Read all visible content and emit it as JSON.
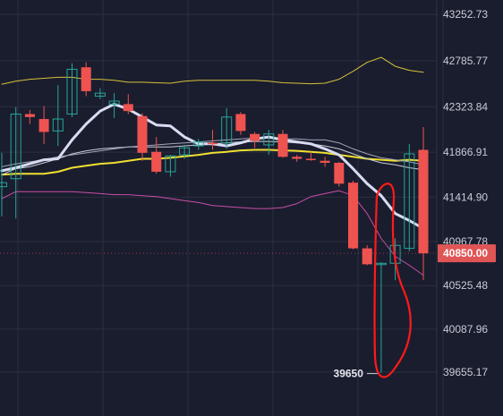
{
  "chart_data": {
    "type": "candlestick",
    "title": "",
    "xlabel": "",
    "ylabel": "",
    "ylim": [
      39500,
      43350
    ],
    "grid": true,
    "y_ticks": [
      "43252.73",
      "42785.77",
      "42323.84",
      "41866.91",
      "41414.90",
      "40967.78",
      "40525.48",
      "40087.96",
      "39655.17"
    ],
    "y_tick_values": [
      43252.73,
      42785.77,
      42323.84,
      41866.91,
      41414.9,
      40967.78,
      40525.48,
      40087.96,
      39655.17
    ],
    "current_price": {
      "label": "40850.00",
      "value": 40850.0
    },
    "low_marker": {
      "label": "39650",
      "value": 39650
    },
    "colors": {
      "up": "#26a69a",
      "down": "#ef5350",
      "background": "#1a1d2e",
      "grid": "#2a2e3f",
      "price_tag": "#e05555",
      "annotation": "#ff1a1a"
    },
    "candles": [
      {
        "o": 41520,
        "h": 41860,
        "l": 41220,
        "c": 41560
      },
      {
        "o": 41600,
        "h": 42320,
        "l": 41200,
        "c": 42250
      },
      {
        "o": 42250,
        "h": 42290,
        "l": 42150,
        "c": 42220
      },
      {
        "o": 42200,
        "h": 42330,
        "l": 41950,
        "c": 42070
      },
      {
        "o": 42080,
        "h": 42540,
        "l": 41930,
        "c": 42200
      },
      {
        "o": 42250,
        "h": 42760,
        "l": 42220,
        "c": 42700
      },
      {
        "o": 42720,
        "h": 42770,
        "l": 42430,
        "c": 42480
      },
      {
        "o": 42430,
        "h": 42510,
        "l": 42400,
        "c": 42460
      },
      {
        "o": 42350,
        "h": 42460,
        "l": 42210,
        "c": 42380
      },
      {
        "o": 42350,
        "h": 42450,
        "l": 42250,
        "c": 42280
      },
      {
        "o": 42230,
        "h": 42260,
        "l": 41780,
        "c": 41860
      },
      {
        "o": 41870,
        "h": 42020,
        "l": 41650,
        "c": 41670
      },
      {
        "o": 41670,
        "h": 41840,
        "l": 41620,
        "c": 41830
      },
      {
        "o": 41840,
        "h": 41940,
        "l": 41800,
        "c": 41910
      },
      {
        "o": 41930,
        "h": 42000,
        "l": 41890,
        "c": 41970
      },
      {
        "o": 41960,
        "h": 42090,
        "l": 41890,
        "c": 41950
      },
      {
        "o": 41960,
        "h": 42310,
        "l": 41900,
        "c": 42220
      },
      {
        "o": 42250,
        "h": 42270,
        "l": 42040,
        "c": 42080
      },
      {
        "o": 42050,
        "h": 42070,
        "l": 41910,
        "c": 41980
      },
      {
        "o": 41940,
        "h": 42090,
        "l": 41840,
        "c": 42050
      },
      {
        "o": 42050,
        "h": 42090,
        "l": 41810,
        "c": 41820
      },
      {
        "o": 41820,
        "h": 41840,
        "l": 41770,
        "c": 41800
      },
      {
        "o": 41800,
        "h": 41870,
        "l": 41780,
        "c": 41790
      },
      {
        "o": 41780,
        "h": 41820,
        "l": 41720,
        "c": 41760
      },
      {
        "o": 41760,
        "h": 41770,
        "l": 41520,
        "c": 41550
      },
      {
        "o": 41560,
        "h": 41580,
        "l": 40890,
        "c": 40900
      },
      {
        "o": 40900,
        "h": 40930,
        "l": 40730,
        "c": 40740
      },
      {
        "o": 40740,
        "h": 40760,
        "l": 39650,
        "c": 40750
      },
      {
        "o": 40750,
        "h": 41000,
        "l": 40580,
        "c": 40930
      },
      {
        "o": 40900,
        "h": 41950,
        "l": 40870,
        "c": 41850
      },
      {
        "o": 41890,
        "h": 42120,
        "l": 40580,
        "c": 40850
      }
    ],
    "series": [
      {
        "values": [
          42550,
          42580,
          42600,
          42610,
          42620,
          42620,
          42600,
          42600,
          42590,
          42570,
          42570,
          42565,
          42560,
          42580,
          42590,
          42590,
          42590,
          42590,
          42590,
          42580,
          42565,
          42560,
          42555,
          42560,
          42600,
          42680,
          42770,
          42820,
          42730,
          42690,
          42670
        ],
        "color": "#d6c23a",
        "width": 1
      },
      {
        "values": [
          41640,
          41650,
          41650,
          41650,
          41670,
          41710,
          41730,
          41750,
          41760,
          41780,
          41800,
          41800,
          41810,
          41825,
          41840,
          41860,
          41870,
          41885,
          41890,
          41890,
          41885,
          41880,
          41870,
          41860,
          41840,
          41820,
          41800,
          41790,
          41780,
          41790,
          41780
        ],
        "color": "#f0e030",
        "width": 2
      },
      {
        "values": [
          41640,
          41700,
          41720,
          41760,
          41800,
          41850,
          41880,
          41900,
          41910,
          41920,
          41920,
          41920,
          41920,
          41930,
          41940,
          41950,
          41960,
          41970,
          41975,
          41975,
          41970,
          41960,
          41950,
          41930,
          41900,
          41850,
          41800,
          41760,
          41740,
          41710,
          41690
        ],
        "color": "#c9cdd8",
        "width": 1
      },
      {
        "values": [
          41720,
          41750,
          41770,
          41790,
          41820,
          41840,
          41860,
          41880,
          41900,
          41920,
          41930,
          41940,
          41950,
          41960,
          41970,
          41980,
          41990,
          42000,
          42010,
          42010,
          42000,
          42000,
          41990,
          41990,
          41960,
          41900,
          41850,
          41810,
          41790,
          41770,
          41740
        ],
        "color": "#a0a6bc",
        "width": 1
      },
      {
        "values": [
          41680,
          41710,
          41750,
          41790,
          41800,
          41990,
          42150,
          42280,
          42350,
          42300,
          42220,
          42140,
          42130,
          42020,
          41950,
          41950,
          41930,
          41960,
          42000,
          42020,
          41990,
          41970,
          41950,
          41900,
          41840,
          41700,
          41550,
          41430,
          41250,
          41180,
          41100
        ],
        "color": "#d8dcf2",
        "width": 3
      },
      {
        "values": [
          41400,
          41470,
          41470,
          41470,
          41470,
          41470,
          41460,
          41450,
          41440,
          41440,
          41430,
          41420,
          41400,
          41380,
          41360,
          41330,
          41320,
          41310,
          41300,
          41300,
          41310,
          41350,
          41420,
          41450,
          41480,
          41430,
          41250,
          41000,
          40820,
          40730,
          40630
        ],
        "color": "#c94ea8",
        "width": 1
      }
    ]
  }
}
